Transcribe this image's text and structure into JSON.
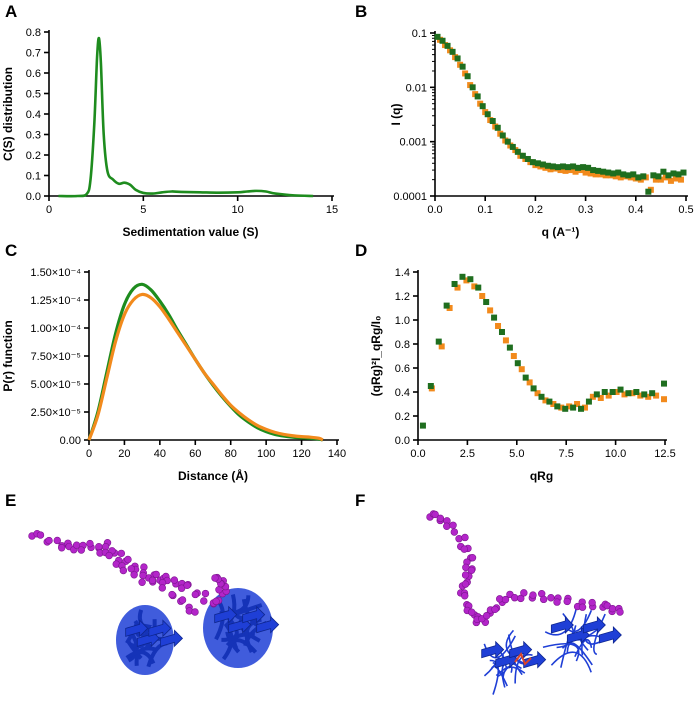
{
  "colors": {
    "green": "#1e8c1e",
    "orange": "#f28a1c",
    "dark_green": "#1f6e1f",
    "purple": "#b325c9",
    "blue": "#1f3fd6",
    "red": "#d9442a"
  },
  "panels": {
    "A": {
      "label": "A"
    },
    "B": {
      "label": "B"
    },
    "C": {
      "label": "C"
    },
    "D": {
      "label": "D"
    },
    "E": {
      "label": "E"
    },
    "F": {
      "label": "F"
    }
  },
  "chart_data": [
    {
      "id": "A",
      "type": "line",
      "xlabel": "Sedimentation value (S)",
      "ylabel": "C(S) distribution",
      "xlim": [
        0,
        15
      ],
      "ylim": [
        0,
        0.8
      ],
      "xticks": [
        0,
        5,
        10,
        15
      ],
      "xtick_labels": [
        "0",
        "5",
        "10",
        "15"
      ],
      "yticks": [
        0,
        0.1,
        0.2,
        0.3,
        0.4,
        0.5,
        0.6,
        0.7,
        0.8
      ],
      "ytick_labels": [
        "0.0",
        "0.1",
        "0.2",
        "0.3",
        "0.4",
        "0.5",
        "0.6",
        "0.7",
        "0.8"
      ],
      "series": [
        {
          "name": "c(s)",
          "color": "#1e8c1e",
          "x": [
            0.5,
            1.5,
            2.0,
            2.2,
            2.4,
            2.55,
            2.65,
            2.75,
            2.9,
            3.1,
            3.4,
            3.7,
            4.0,
            4.3,
            4.6,
            5.0,
            5.5,
            6.0,
            6.5,
            7.0,
            8.0,
            9.0,
            10.0,
            10.5,
            11.0,
            11.5,
            12.0,
            13.0,
            14.0
          ],
          "y": [
            0,
            0,
            0.01,
            0.08,
            0.35,
            0.68,
            0.77,
            0.65,
            0.3,
            0.12,
            0.08,
            0.06,
            0.065,
            0.055,
            0.03,
            0.015,
            0.012,
            0.018,
            0.022,
            0.02,
            0.018,
            0.016,
            0.018,
            0.022,
            0.025,
            0.022,
            0.012,
            0.003,
            0
          ]
        }
      ]
    },
    {
      "id": "B",
      "type": "scatter",
      "xlabel": "q (A⁻¹)",
      "ylabel": "I (q)",
      "xlim": [
        0,
        0.5
      ],
      "ylim": [
        0.0001,
        0.1
      ],
      "yscale": "log",
      "xticks": [
        0,
        0.1,
        0.2,
        0.3,
        0.4,
        0.5
      ],
      "xtick_labels": [
        "0.0",
        "0.1",
        "0.2",
        "0.3",
        "0.4",
        "0.5"
      ],
      "yticks": [
        0.0001,
        0.001,
        0.01,
        0.1
      ],
      "ytick_labels": [
        "0.0001",
        "0.001",
        "0.01",
        "0.1"
      ],
      "series": [
        {
          "name": "orange",
          "color": "#f28a1c",
          "x": [
            0.01,
            0.02,
            0.03,
            0.04,
            0.05,
            0.06,
            0.07,
            0.08,
            0.09,
            0.1,
            0.11,
            0.12,
            0.13,
            0.14,
            0.15,
            0.16,
            0.17,
            0.18,
            0.19,
            0.2,
            0.21,
            0.22,
            0.23,
            0.24,
            0.25,
            0.26,
            0.27,
            0.28,
            0.29,
            0.3,
            0.31,
            0.32,
            0.33,
            0.34,
            0.35,
            0.36,
            0.37,
            0.38,
            0.39,
            0.4,
            0.41,
            0.42,
            0.43,
            0.44,
            0.45,
            0.46,
            0.47,
            0.48,
            0.49
          ],
          "y": [
            0.075,
            0.06,
            0.048,
            0.036,
            0.026,
            0.018,
            0.011,
            0.0075,
            0.005,
            0.0035,
            0.0025,
            0.0019,
            0.0014,
            0.00105,
            0.00085,
            0.0007,
            0.00055,
            0.00048,
            0.00042,
            0.00037,
            0.00035,
            0.00033,
            0.00031,
            0.00032,
            0.0003,
            0.00029,
            0.0003,
            0.00028,
            0.0003,
            0.00027,
            0.00026,
            0.00025,
            0.00025,
            0.00024,
            0.00024,
            0.00023,
            0.00022,
            0.00023,
            0.00022,
            0.00021,
            0.0002,
            0.00022,
            0.00013,
            0.0002,
            0.0002,
            0.00022,
            0.00019,
            0.00021,
            0.0002
          ]
        },
        {
          "name": "green",
          "color": "#1f6e1f",
          "x": [
            0.005,
            0.015,
            0.025,
            0.035,
            0.045,
            0.055,
            0.065,
            0.075,
            0.085,
            0.095,
            0.105,
            0.115,
            0.125,
            0.135,
            0.145,
            0.155,
            0.165,
            0.175,
            0.185,
            0.195,
            0.205,
            0.215,
            0.225,
            0.235,
            0.245,
            0.255,
            0.265,
            0.275,
            0.285,
            0.295,
            0.305,
            0.315,
            0.325,
            0.335,
            0.345,
            0.355,
            0.365,
            0.375,
            0.385,
            0.395,
            0.405,
            0.415,
            0.425,
            0.435,
            0.445,
            0.455,
            0.465,
            0.475,
            0.485,
            0.495
          ],
          "y": [
            0.085,
            0.072,
            0.058,
            0.045,
            0.034,
            0.024,
            0.016,
            0.01,
            0.0068,
            0.0045,
            0.0032,
            0.0024,
            0.0018,
            0.0013,
            0.001,
            0.0008,
            0.00065,
            0.00055,
            0.00048,
            0.00042,
            0.0004,
            0.00038,
            0.00036,
            0.00035,
            0.00034,
            0.00035,
            0.00034,
            0.00035,
            0.00033,
            0.00034,
            0.00033,
            0.0003,
            0.00029,
            0.00028,
            0.00027,
            0.00026,
            0.00027,
            0.00025,
            0.00024,
            0.00025,
            0.00022,
            0.00023,
            0.00012,
            0.00024,
            0.00023,
            0.00028,
            0.00024,
            0.00026,
            0.00025,
            0.00027
          ]
        }
      ]
    },
    {
      "id": "C",
      "type": "line",
      "xlabel": "Distance (Å)",
      "ylabel": "P(r) function",
      "xlim": [
        0,
        140
      ],
      "ylim": [
        0,
        0.00015
      ],
      "xticks": [
        0,
        20,
        40,
        60,
        80,
        100,
        120,
        140
      ],
      "xtick_labels": [
        "0",
        "20",
        "40",
        "60",
        "80",
        "100",
        "120",
        "140"
      ],
      "yticks": [
        0,
        2.5e-05,
        5e-05,
        7.5e-05,
        0.0001,
        0.000125,
        0.00015
      ],
      "ytick_labels": [
        "0.00",
        "2.50×10⁻⁵",
        "5.00×10⁻⁵",
        "7.50×10⁻⁵",
        "1.00×10⁻⁴",
        "1.25×10⁻⁴",
        "1.50×10⁻⁴"
      ],
      "series": [
        {
          "name": "green",
          "color": "#1e8c1e",
          "x": [
            0,
            5,
            10,
            15,
            20,
            25,
            30,
            35,
            40,
            45,
            50,
            55,
            60,
            65,
            70,
            75,
            80,
            85,
            90,
            95,
            100,
            105,
            110,
            115,
            120,
            125,
            130,
            132
          ],
          "y": [
            0,
            2.5e-05,
            6e-05,
            9.5e-05,
            0.000121,
            0.000135,
            0.000139,
            0.000134,
            0.000124,
            0.000112,
            9.8e-05,
            8.5e-05,
            7.2e-05,
            6e-05,
            4.9e-05,
            3.9e-05,
            3e-05,
            2.2e-05,
            1.6e-05,
            1.1e-05,
            7.5e-06,
            5e-06,
            3.5e-06,
            2.5e-06,
            2e-06,
            1.5e-06,
            8e-07,
            0
          ]
        },
        {
          "name": "orange",
          "color": "#f28a1c",
          "x": [
            0,
            5,
            10,
            15,
            20,
            25,
            30,
            35,
            40,
            45,
            50,
            55,
            60,
            65,
            70,
            75,
            80,
            85,
            90,
            95,
            100,
            105,
            110,
            115,
            120,
            125,
            130,
            132
          ],
          "y": [
            0,
            2.2e-05,
            5.5e-05,
            8.8e-05,
            0.000112,
            0.000125,
            0.00013,
            0.000127,
            0.000119,
            0.000108,
            9.6e-05,
            8.4e-05,
            7.2e-05,
            6e-05,
            5e-05,
            4e-05,
            3.1e-05,
            2.4e-05,
            1.8e-05,
            1.3e-05,
            9.5e-06,
            6.8e-06,
            5e-06,
            3.8e-06,
            3e-06,
            2.5e-06,
            1.5e-06,
            0
          ]
        }
      ]
    },
    {
      "id": "D",
      "type": "scatter",
      "xlabel": "qRg",
      "ylabel": "(qRg)²I_qRg/I₀",
      "xlim": [
        0,
        12.5
      ],
      "ylim": [
        0,
        1.4
      ],
      "xticks": [
        0,
        2.5,
        5,
        7.5,
        10,
        12.5
      ],
      "xtick_labels": [
        "0.0",
        "2.5",
        "5.0",
        "7.5",
        "10.0",
        "12.5"
      ],
      "yticks": [
        0,
        0.2,
        0.4,
        0.6,
        0.8,
        1.0,
        1.2,
        1.4
      ],
      "ytick_labels": [
        "0.0",
        "0.2",
        "0.4",
        "0.6",
        "0.8",
        "1.0",
        "1.2",
        "1.4"
      ],
      "series": [
        {
          "name": "orange",
          "color": "#f28a1c",
          "x": [
            0.7,
            1.2,
            1.6,
            2.0,
            2.45,
            2.85,
            3.25,
            3.65,
            4.05,
            4.45,
            4.85,
            5.25,
            5.65,
            6.05,
            6.45,
            6.85,
            7.25,
            7.65,
            8.05,
            8.45,
            8.85,
            9.25,
            9.65,
            10.05,
            10.45,
            10.85,
            11.25,
            11.65,
            12.05,
            12.45
          ],
          "y": [
            0.43,
            0.78,
            1.1,
            1.27,
            1.33,
            1.28,
            1.2,
            1.08,
            0.95,
            0.83,
            0.7,
            0.59,
            0.48,
            0.39,
            0.33,
            0.3,
            0.27,
            0.28,
            0.3,
            0.27,
            0.36,
            0.35,
            0.37,
            0.4,
            0.38,
            0.39,
            0.37,
            0.36,
            0.37,
            0.34
          ]
        },
        {
          "name": "green",
          "color": "#1f6e1f",
          "x": [
            0.25,
            0.65,
            1.05,
            1.45,
            1.85,
            2.25,
            2.65,
            3.05,
            3.45,
            3.85,
            4.25,
            4.65,
            5.05,
            5.45,
            5.85,
            6.25,
            6.65,
            7.05,
            7.45,
            7.85,
            8.25,
            8.65,
            9.05,
            9.45,
            9.85,
            10.25,
            10.65,
            11.05,
            11.45,
            11.85,
            12.45
          ],
          "y": [
            0.12,
            0.45,
            0.82,
            1.12,
            1.3,
            1.36,
            1.34,
            1.27,
            1.15,
            1.02,
            0.9,
            0.77,
            0.64,
            0.52,
            0.43,
            0.36,
            0.32,
            0.28,
            0.26,
            0.27,
            0.26,
            0.32,
            0.38,
            0.4,
            0.4,
            0.42,
            0.39,
            0.4,
            0.38,
            0.39,
            0.47
          ]
        }
      ]
    }
  ]
}
